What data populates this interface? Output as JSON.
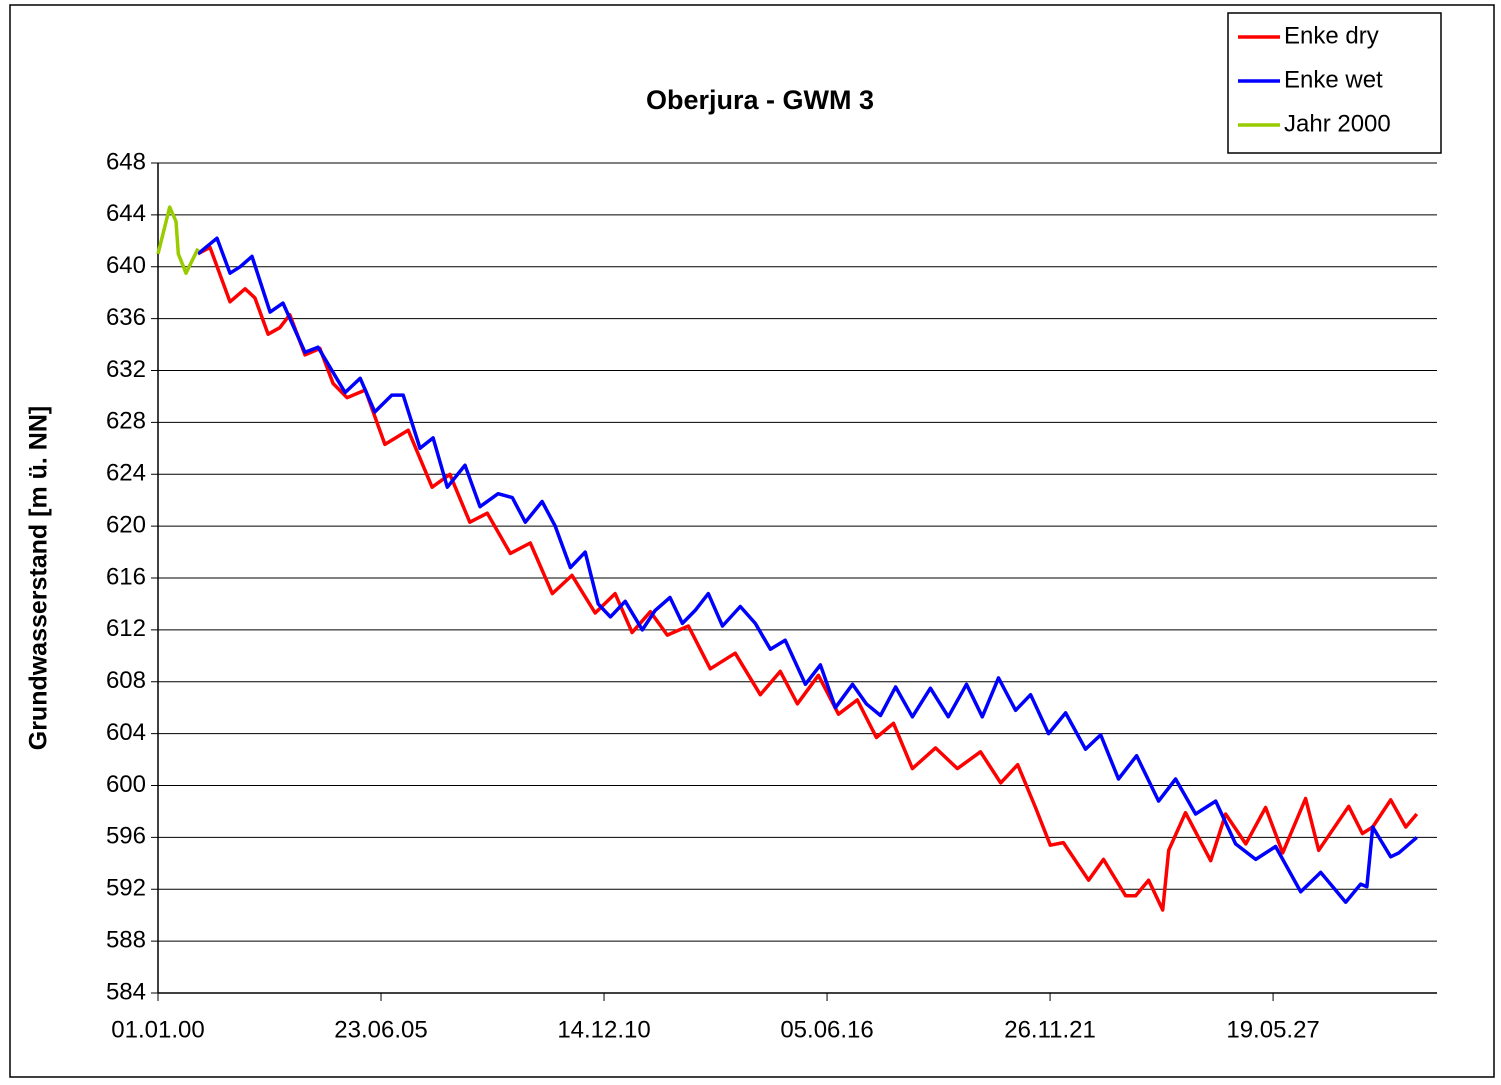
{
  "chart_data": {
    "type": "line",
    "title": "Oberjura - GWM 3",
    "ylabel": "Grundwasserstand [m ü. NN]",
    "xlim": [
      "01.01.00",
      "28.05.31"
    ],
    "xticks": [
      "01.01.00",
      "23.06.05",
      "14.12.10",
      "05.06.16",
      "26.11.21",
      "19.05.27"
    ],
    "ylim": [
      584,
      648
    ],
    "yticks": [
      584,
      588,
      592,
      596,
      600,
      604,
      608,
      612,
      616,
      620,
      624,
      628,
      632,
      636,
      640,
      644,
      648
    ],
    "grid": true,
    "legend": "top-right",
    "series": [
      {
        "name": "Enke dry",
        "color": "#ff0000",
        "x": [
          "25.12.00",
          "11.04.01",
          "08.10.01",
          "20.02.02",
          "19.05.02",
          "14.09.02",
          "28.12.02",
          "28.03.03",
          "11.08.03",
          "23.12.03",
          "19.04.04",
          "23.08.04",
          "02.02.05",
          "28.07.05",
          "22.02.06",
          "24.09.06",
          "03.03.07",
          "28.08.07",
          "01.02.08",
          "25.08.08",
          "21.02.09",
          "06.09.09",
          "02.03.10",
          "26.09.10",
          "23.03.11",
          "23.08.11",
          "03.02.12",
          "03.07.12",
          "09.01.13",
          "24.07.13",
          "04.03.14",
          "15.10.14",
          "13.04.15",
          "13.09.15",
          "19.03.16",
          "16.09.16",
          "03.03.17",
          "22.08.17",
          "22.01.18",
          "10.07.18",
          "03.02.19",
          "18.08.19",
          "12.03.20",
          "09.09.20",
          "09.02.21",
          "18.07.21",
          "28.11.21",
          "26.03.22",
          "07.11.22",
          "20.03.23",
          "04.10.23",
          "03.01.24",
          "28.04.24",
          "01.09.24",
          "25.10.24",
          "25.03.25",
          "06.11.25",
          "19.03.26",
          "16.09.26",
          "13.03.27",
          "13.08.27",
          "06.03.28",
          "01.07.28",
          "27.03.29",
          "28.07.29",
          "28.10.29",
          "08.04.30",
          "21.08.30",
          "28.11.30"
        ],
        "values": [
          641,
          641.5,
          637.3,
          638.3,
          637.6,
          634.8,
          635.3,
          636.3,
          633.2,
          633.7,
          631,
          629.9,
          630.5,
          626.3,
          627.4,
          623,
          624,
          620.3,
          621,
          617.9,
          618.7,
          614.8,
          616.2,
          613.3,
          614.8,
          611.8,
          613.4,
          611.6,
          612.3,
          609,
          610.2,
          607,
          608.8,
          606.3,
          608.5,
          605.5,
          606.6,
          603.7,
          604.8,
          601.3,
          602.9,
          601.3,
          602.6,
          600.2,
          601.6,
          598.3,
          595.4,
          595.6,
          592.7,
          594.3,
          591.5,
          591.5,
          592.7,
          590.4,
          595,
          597.9,
          594.2,
          597.8,
          595.5,
          598.3,
          594.8,
          599,
          595,
          598.4,
          596.3,
          596.8,
          598.9,
          596.8,
          597.8
        ]
      },
      {
        "name": "Enke wet",
        "color": "#0000ff",
        "x": [
          "25.12.00",
          "13.06.01",
          "08.10.01",
          "06.01.02",
          "23.04.02",
          "02.10.02",
          "26.01.03",
          "11.08.03",
          "06.12.03",
          "05.08.04",
          "18.12.04",
          "28.04.05",
          "28.09.05",
          "08.01.06",
          "08.06.06",
          "03.10.06",
          "07.02.07",
          "16.07.07",
          "28.11.07",
          "08.05.08",
          "12.09.08",
          "07.01.09",
          "07.06.09",
          "02.10.09",
          "15.02.10",
          "28.06.10",
          "23.10.10",
          "09.02.11",
          "22.06.11",
          "22.11.11",
          "17.03.12",
          "28.07.12",
          "16.11.12",
          "11.03.13",
          "06.07.13",
          "10.11.13",
          "19.04.14",
          "01.09.14",
          "14.01.15",
          "27.05.15",
          "24.11.15",
          "06.04.16",
          "19.08.16",
          "19.01.17",
          "23.05.17",
          "27.09.17",
          "10.02.18",
          "10.07.18",
          "19.12.18",
          "28.05.19",
          "08.11.19",
          "28.03.20",
          "21.08.20",
          "21.01.21",
          "04.06.21",
          "13.11.21",
          "14.04.22",
          "10.10.22",
          "23.02.23",
          "02.08.23",
          "11.01.24",
          "26.07.24",
          "26.12.24",
          "23.06.25",
          "20.12.25",
          "17.06.26",
          "14.12.26",
          "11.06.27",
          "22.01.28",
          "19.07.28",
          "28.02.29",
          "13.07.29",
          "06.09.29",
          "28.10.29",
          "08.04.30",
          "19.06.30",
          "28.11.30"
        ],
        "values": [
          641,
          642.2,
          639.5,
          640,
          640.8,
          636.5,
          637.2,
          633.4,
          633.8,
          630.3,
          631.4,
          628.8,
          630.1,
          630.1,
          626,
          626.8,
          623,
          624.7,
          621.5,
          622.5,
          622.2,
          620.3,
          621.9,
          620,
          616.8,
          618,
          614,
          613,
          614.2,
          612,
          613.5,
          614.5,
          612.5,
          613.5,
          614.8,
          612.3,
          613.8,
          612.5,
          610.5,
          611.2,
          607.8,
          609.3,
          606,
          607.8,
          606.3,
          605.4,
          607.6,
          605.3,
          607.5,
          605.3,
          607.8,
          605.3,
          608.3,
          605.8,
          607,
          604,
          605.6,
          602.8,
          603.9,
          600.5,
          602.3,
          598.8,
          600.5,
          597.8,
          598.8,
          595.5,
          594.3,
          595.3,
          591.8,
          593.3,
          591,
          592.4,
          592.2,
          596.8,
          594.5,
          594.8,
          596
        ]
      },
      {
        "name": "Jahr 2000",
        "color": "#99cc00",
        "x": [
          "01.01.00",
          "15.04.00",
          "10.06.00",
          "01.07.00",
          "08.09.00",
          "25.12.00"
        ],
        "values": [
          641,
          644.6,
          643.5,
          641,
          639.5,
          641.4
        ]
      }
    ]
  }
}
